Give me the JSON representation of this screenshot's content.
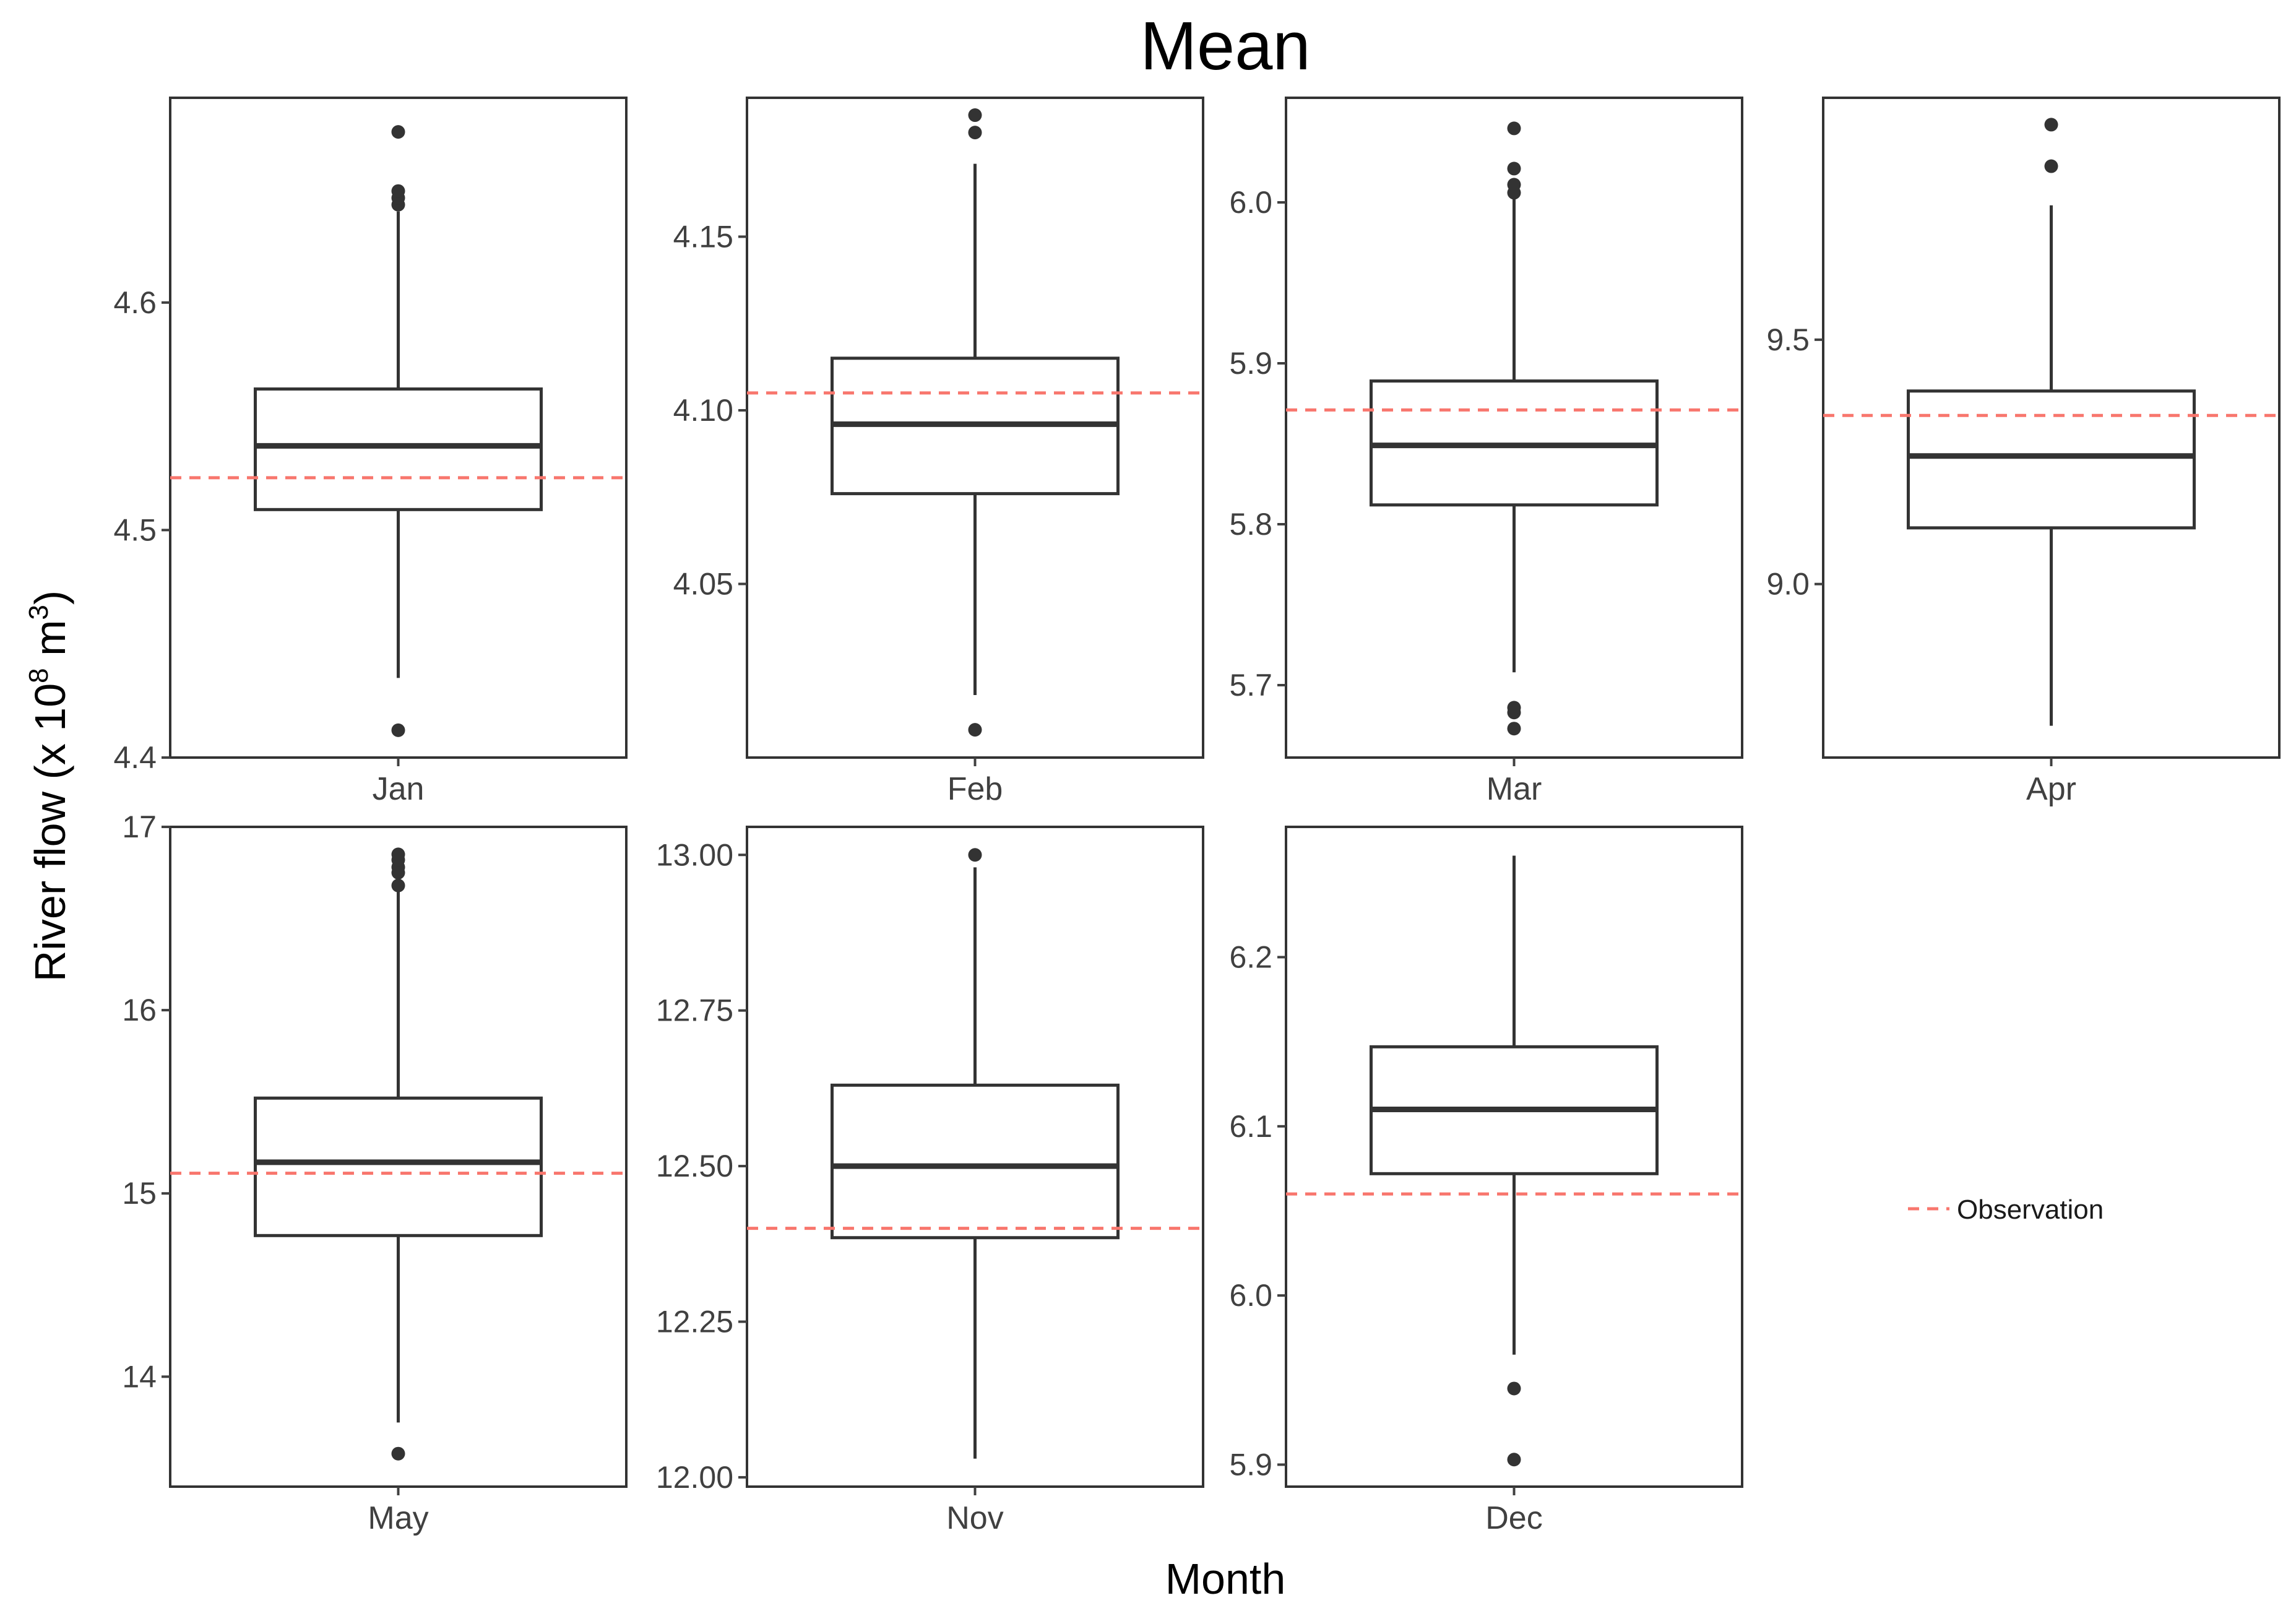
{
  "chart_data": {
    "type": "boxplot",
    "title": "Mean",
    "xlabel": "Month",
    "ylabel": {
      "prefix": "River flow (x 10",
      "exp1": "8",
      "middle": " m",
      "exp2": "3",
      "suffix": ")"
    },
    "legend": {
      "label": "Observation",
      "color": "#F8766D",
      "style": "dashed",
      "placement": "right"
    },
    "colors": {
      "box": "#333333",
      "observation": "#F8766D",
      "frame": "#333333",
      "tick": "#404040"
    },
    "panels": [
      {
        "month": "Jan",
        "ylim": [
          4.4,
          4.69
        ],
        "ticks": [
          4.4,
          4.5,
          4.6
        ],
        "tick_labels": [
          "4.4",
          "4.5",
          "4.6"
        ],
        "whisker_low": 4.435,
        "q1": 4.509,
        "median": 4.537,
        "q3": 4.562,
        "whisker_high": 4.64,
        "outliers": [
          4.412,
          4.643,
          4.646,
          4.649,
          4.675
        ],
        "observation": 4.523
      },
      {
        "month": "Feb",
        "ylim": [
          4.0,
          4.19
        ],
        "ticks": [
          4.05,
          4.1,
          4.15
        ],
        "tick_labels": [
          "4.05",
          "4.10",
          "4.15"
        ],
        "whisker_low": 4.018,
        "q1": 4.076,
        "median": 4.096,
        "q3": 4.115,
        "whisker_high": 4.171,
        "outliers": [
          4.008,
          4.18,
          4.185
        ],
        "observation": 4.105
      },
      {
        "month": "Mar",
        "ylim": [
          5.655,
          6.065
        ],
        "ticks": [
          5.7,
          5.8,
          5.9,
          6.0
        ],
        "tick_labels": [
          "5.7",
          "5.8",
          "5.9",
          "6.0"
        ],
        "whisker_low": 5.708,
        "q1": 5.812,
        "median": 5.849,
        "q3": 5.889,
        "whisker_high": 6.002,
        "outliers": [
          5.673,
          5.683,
          5.686,
          6.006,
          6.011,
          6.021,
          6.046
        ],
        "observation": 5.871
      },
      {
        "month": "Apr",
        "ylim": [
          8.645,
          9.995
        ],
        "ticks": [
          9.0,
          9.5
        ],
        "tick_labels": [
          "9.0",
          "9.5"
        ],
        "whisker_low": 8.71,
        "q1": 9.115,
        "median": 9.262,
        "q3": 9.395,
        "whisker_high": 9.775,
        "outliers": [
          9.855,
          9.94
        ],
        "observation": 9.345
      },
      {
        "month": "May",
        "ylim": [
          13.4,
          17.0
        ],
        "ticks": [
          14,
          15,
          16,
          17
        ],
        "tick_labels": [
          "14",
          "15",
          "16",
          "17"
        ],
        "whisker_low": 13.75,
        "q1": 14.77,
        "median": 15.17,
        "q3": 15.52,
        "whisker_high": 16.65,
        "outliers": [
          13.58,
          16.68,
          16.75,
          16.78,
          16.82,
          16.85
        ],
        "observation": 15.11
      },
      {
        "month": "Nov",
        "ylim": [
          11.985,
          13.045
        ],
        "ticks": [
          12.0,
          12.25,
          12.5,
          12.75,
          13.0
        ],
        "tick_labels": [
          "12.00",
          "12.25",
          "12.50",
          "12.75",
          "13.00"
        ],
        "whisker_low": 12.03,
        "q1": 12.385,
        "median": 12.5,
        "q3": 12.63,
        "whisker_high": 12.98,
        "outliers": [
          13.0
        ],
        "observation": 12.4
      },
      {
        "month": "Dec",
        "ylim": [
          5.887,
          6.277
        ],
        "ticks": [
          5.9,
          6.0,
          6.1,
          6.2
        ],
        "tick_labels": [
          "5.9",
          "6.0",
          "6.1",
          "6.2"
        ],
        "whisker_low": 5.965,
        "q1": 6.072,
        "median": 6.11,
        "q3": 6.147,
        "whisker_high": 6.26,
        "outliers": [
          5.903,
          5.945
        ],
        "observation": 6.06
      }
    ]
  }
}
